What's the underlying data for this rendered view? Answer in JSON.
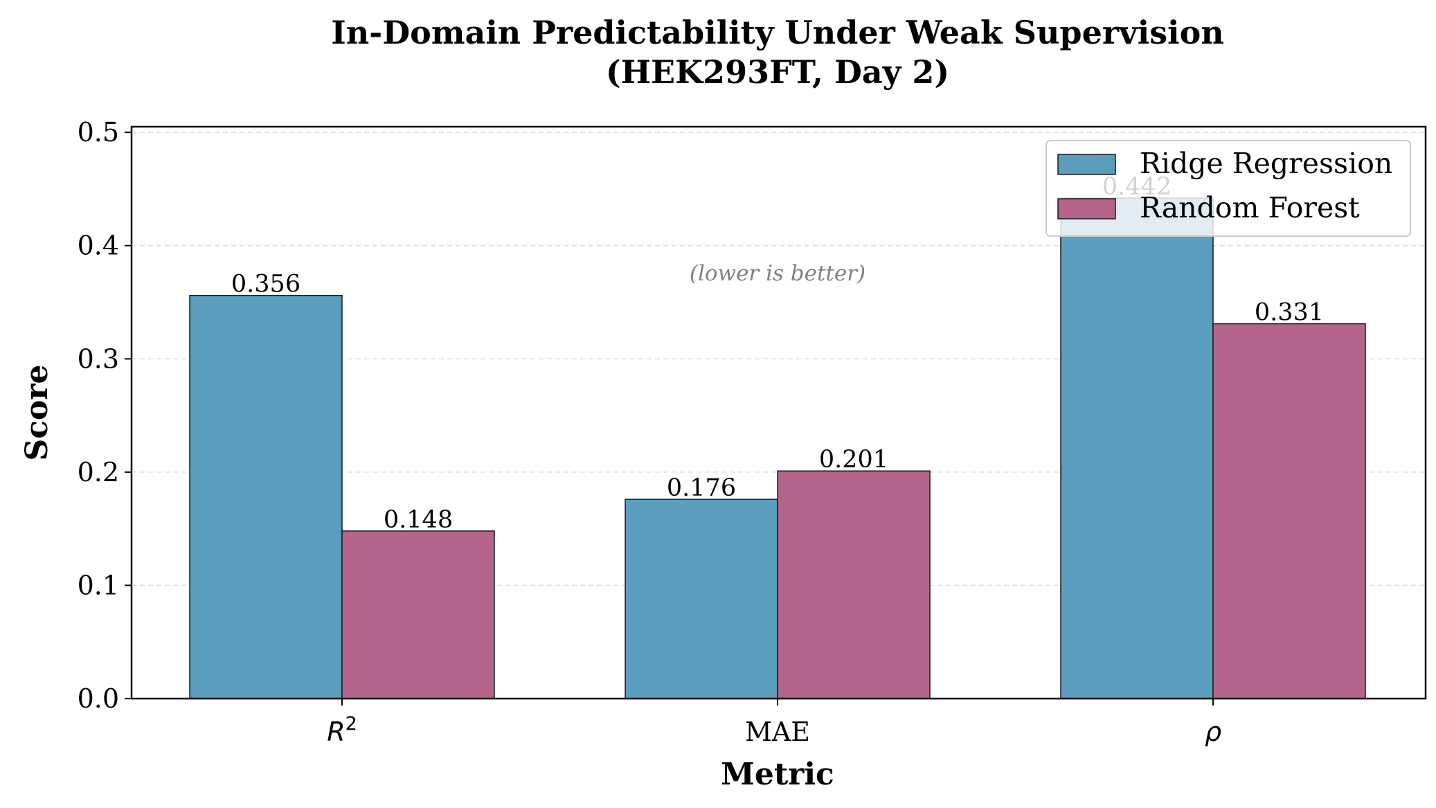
{
  "chart_data": {
    "type": "bar",
    "title": "In-Domain Predictability Under Weak Supervision",
    "subtitle": "(HEK293FT, Day 2)",
    "xlabel": "Metric",
    "ylabel": "Score",
    "categories": [
      {
        "base": "R",
        "sup": "2",
        "math": true
      },
      {
        "base": "MAE",
        "sup": "",
        "math": false
      },
      {
        "base": "ρ",
        "sup": "",
        "math": true
      }
    ],
    "series": [
      {
        "name": "Ridge Regression",
        "color": "#5a9dbd",
        "values": [
          0.356,
          0.176,
          0.442
        ],
        "labels": [
          "0.356",
          "0.176",
          "0.442"
        ]
      },
      {
        "name": "Random Forest",
        "color": "#b5648b",
        "values": [
          0.148,
          0.201,
          0.331
        ],
        "labels": [
          "0.148",
          "0.201",
          "0.331"
        ]
      }
    ],
    "ylim": [
      0,
      0.505
    ],
    "yticks": [
      "0.0",
      "0.1",
      "0.2",
      "0.3",
      "0.4",
      "0.5"
    ],
    "grid": "horizontal dashed",
    "legend_position": "top-right",
    "annotation": "(lower is better)"
  }
}
